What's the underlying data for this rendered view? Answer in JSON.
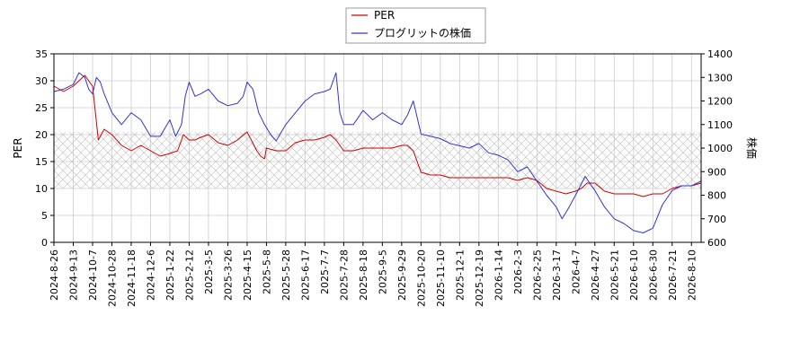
{
  "chart_data": {
    "type": "line",
    "legend_position": "top-center",
    "grid": true,
    "xlabel": "",
    "ylabel_left": "PER",
    "ylabel_right": "株価",
    "ylim_left": [
      0,
      35
    ],
    "ylim_right": [
      600,
      1400
    ],
    "yticks_left": [
      0,
      5,
      10,
      15,
      20,
      25,
      30,
      35
    ],
    "yticks_right": [
      600,
      700,
      800,
      900,
      1000,
      1100,
      1200,
      1300,
      1400
    ],
    "band_left": [
      10,
      20.5
    ],
    "x_tick_labels": [
      "2024-8-26",
      "2024-9-13",
      "2024-10-7",
      "2024-10-28",
      "2024-11-18",
      "2024-12-6",
      "2025-1-22",
      "2025-2-12",
      "2025-3-5",
      "2025-3-26",
      "2025-4-15",
      "2025-5-8",
      "2025-5-28",
      "2025-6-17",
      "2025-7-7",
      "2025-7-28",
      "2025-8-18",
      "2025-9-5",
      "2025-9-29",
      "2025-10-20",
      "2025-11-10",
      "2025-12-1",
      "2025-12-19",
      "2026-1-14",
      "2026-2-3",
      "2026-2-25",
      "2026-3-17",
      "2026-4-7",
      "2026-4-27",
      "2026-5-21",
      "2026-6-10",
      "2026-6-30",
      "2026-7-21",
      "2026-8-10"
    ],
    "series": [
      {
        "name": "PER",
        "axis": "left",
        "color": "#cc0000",
        "x_index": [
          0,
          0.5,
          1,
          1.3,
          1.6,
          1.8,
          2,
          2.3,
          2.6,
          3,
          3.5,
          4,
          4.5,
          5,
          5.5,
          6,
          6.4,
          6.7,
          7,
          7.3,
          7.6,
          8,
          8.5,
          9,
          9.5,
          10,
          10.5,
          10.7,
          10.9,
          11,
          11.5,
          12,
          12.5,
          13,
          13.5,
          14,
          14.3,
          14.6,
          15,
          15.5,
          16,
          16.5,
          17,
          17.5,
          18,
          18.3,
          18.6,
          19,
          19.5,
          20,
          20.5,
          21,
          21.5,
          22,
          22.5,
          23,
          23.5,
          24,
          24.5,
          25,
          25.5,
          26,
          26.5,
          27,
          27.3,
          27.6,
          28,
          28.5,
          29,
          29.5,
          30,
          30.5,
          31,
          31.5,
          32,
          32.5,
          33,
          33.5
        ],
        "values": [
          29,
          28,
          29,
          30,
          31,
          30,
          29,
          19,
          21,
          20,
          18,
          17,
          18,
          17,
          16,
          16.5,
          17,
          20,
          19,
          19,
          19.5,
          20,
          18.5,
          18,
          19,
          20.5,
          17,
          16,
          15.5,
          17.5,
          17,
          17,
          18.5,
          19,
          19,
          19.5,
          20,
          19,
          17,
          17,
          17.5,
          17.5,
          17.5,
          17.5,
          18,
          18,
          17,
          13,
          12.5,
          12.5,
          12,
          12,
          12,
          12,
          12,
          12,
          12,
          11.5,
          12,
          11.5,
          10,
          9.5,
          9,
          9.5,
          10,
          11,
          11,
          9.5,
          9,
          9,
          9,
          8.5,
          9,
          9,
          10,
          10.5,
          10.5,
          11
        ]
      },
      {
        "name": "プログリットの株価",
        "axis": "right",
        "color": "#3333cc",
        "x_index": [
          0,
          0.5,
          1,
          1.3,
          1.6,
          1.8,
          2,
          2.2,
          2.4,
          2.6,
          3,
          3.5,
          4,
          4.5,
          5,
          5.5,
          6,
          6.3,
          6.6,
          6.8,
          7,
          7.3,
          7.6,
          8,
          8.5,
          9,
          9.5,
          9.8,
          10,
          10.3,
          10.6,
          10.9,
          11.2,
          11.5,
          12,
          12.5,
          13,
          13.5,
          14,
          14.3,
          14.6,
          14.8,
          15,
          15.5,
          16,
          16.5,
          17,
          17.5,
          18,
          18.3,
          18.6,
          19,
          19.5,
          20,
          20.5,
          21,
          21.5,
          22,
          22.5,
          23,
          23.5,
          24,
          24.5,
          25,
          25.5,
          26,
          26.3,
          26.6,
          27,
          27.5,
          28,
          28.5,
          29,
          29.5,
          30,
          30.5,
          31,
          31.5,
          32,
          32.5,
          33,
          33.5
        ],
        "values": [
          1240,
          1250,
          1270,
          1320,
          1300,
          1250,
          1230,
          1300,
          1280,
          1230,
          1150,
          1100,
          1150,
          1120,
          1050,
          1050,
          1120,
          1050,
          1100,
          1220,
          1280,
          1220,
          1230,
          1250,
          1200,
          1180,
          1190,
          1220,
          1280,
          1250,
          1150,
          1100,
          1060,
          1030,
          1100,
          1150,
          1200,
          1230,
          1240,
          1250,
          1320,
          1150,
          1100,
          1100,
          1160,
          1120,
          1150,
          1120,
          1100,
          1140,
          1200,
          1060,
          1050,
          1040,
          1020,
          1010,
          1000,
          1020,
          980,
          970,
          950,
          900,
          920,
          860,
          800,
          750,
          700,
          740,
          800,
          880,
          820,
          750,
          700,
          680,
          650,
          640,
          660,
          760,
          820,
          840,
          840,
          860
        ]
      }
    ]
  }
}
